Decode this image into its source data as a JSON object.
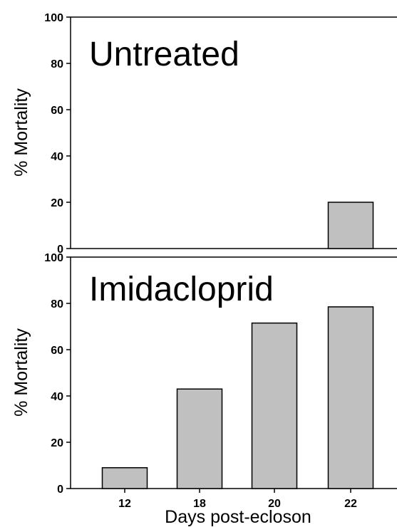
{
  "chart_data": [
    {
      "type": "bar",
      "panel_label": "Untreated",
      "ylabel": "% Mortality",
      "xlabel": "",
      "categories": [
        "12",
        "18",
        "20",
        "22"
      ],
      "values": [
        0,
        0,
        0,
        20
      ],
      "ylim": [
        0,
        100
      ],
      "yticks": [
        0,
        20,
        40,
        60,
        80,
        100
      ],
      "bar_color": "#c0c0c0",
      "show_x_tick_labels": false,
      "grid": false
    },
    {
      "type": "bar",
      "panel_label": "Imidacloprid",
      "ylabel": "% Mortality",
      "xlabel": "Days post-ecloson",
      "categories": [
        "12",
        "18",
        "20",
        "22"
      ],
      "values": [
        9,
        43,
        71.5,
        78.5
      ],
      "ylim": [
        0,
        100
      ],
      "yticks": [
        0,
        20,
        40,
        60,
        80,
        100
      ],
      "bar_color": "#c0c0c0",
      "show_x_tick_labels": true,
      "grid": false
    }
  ]
}
